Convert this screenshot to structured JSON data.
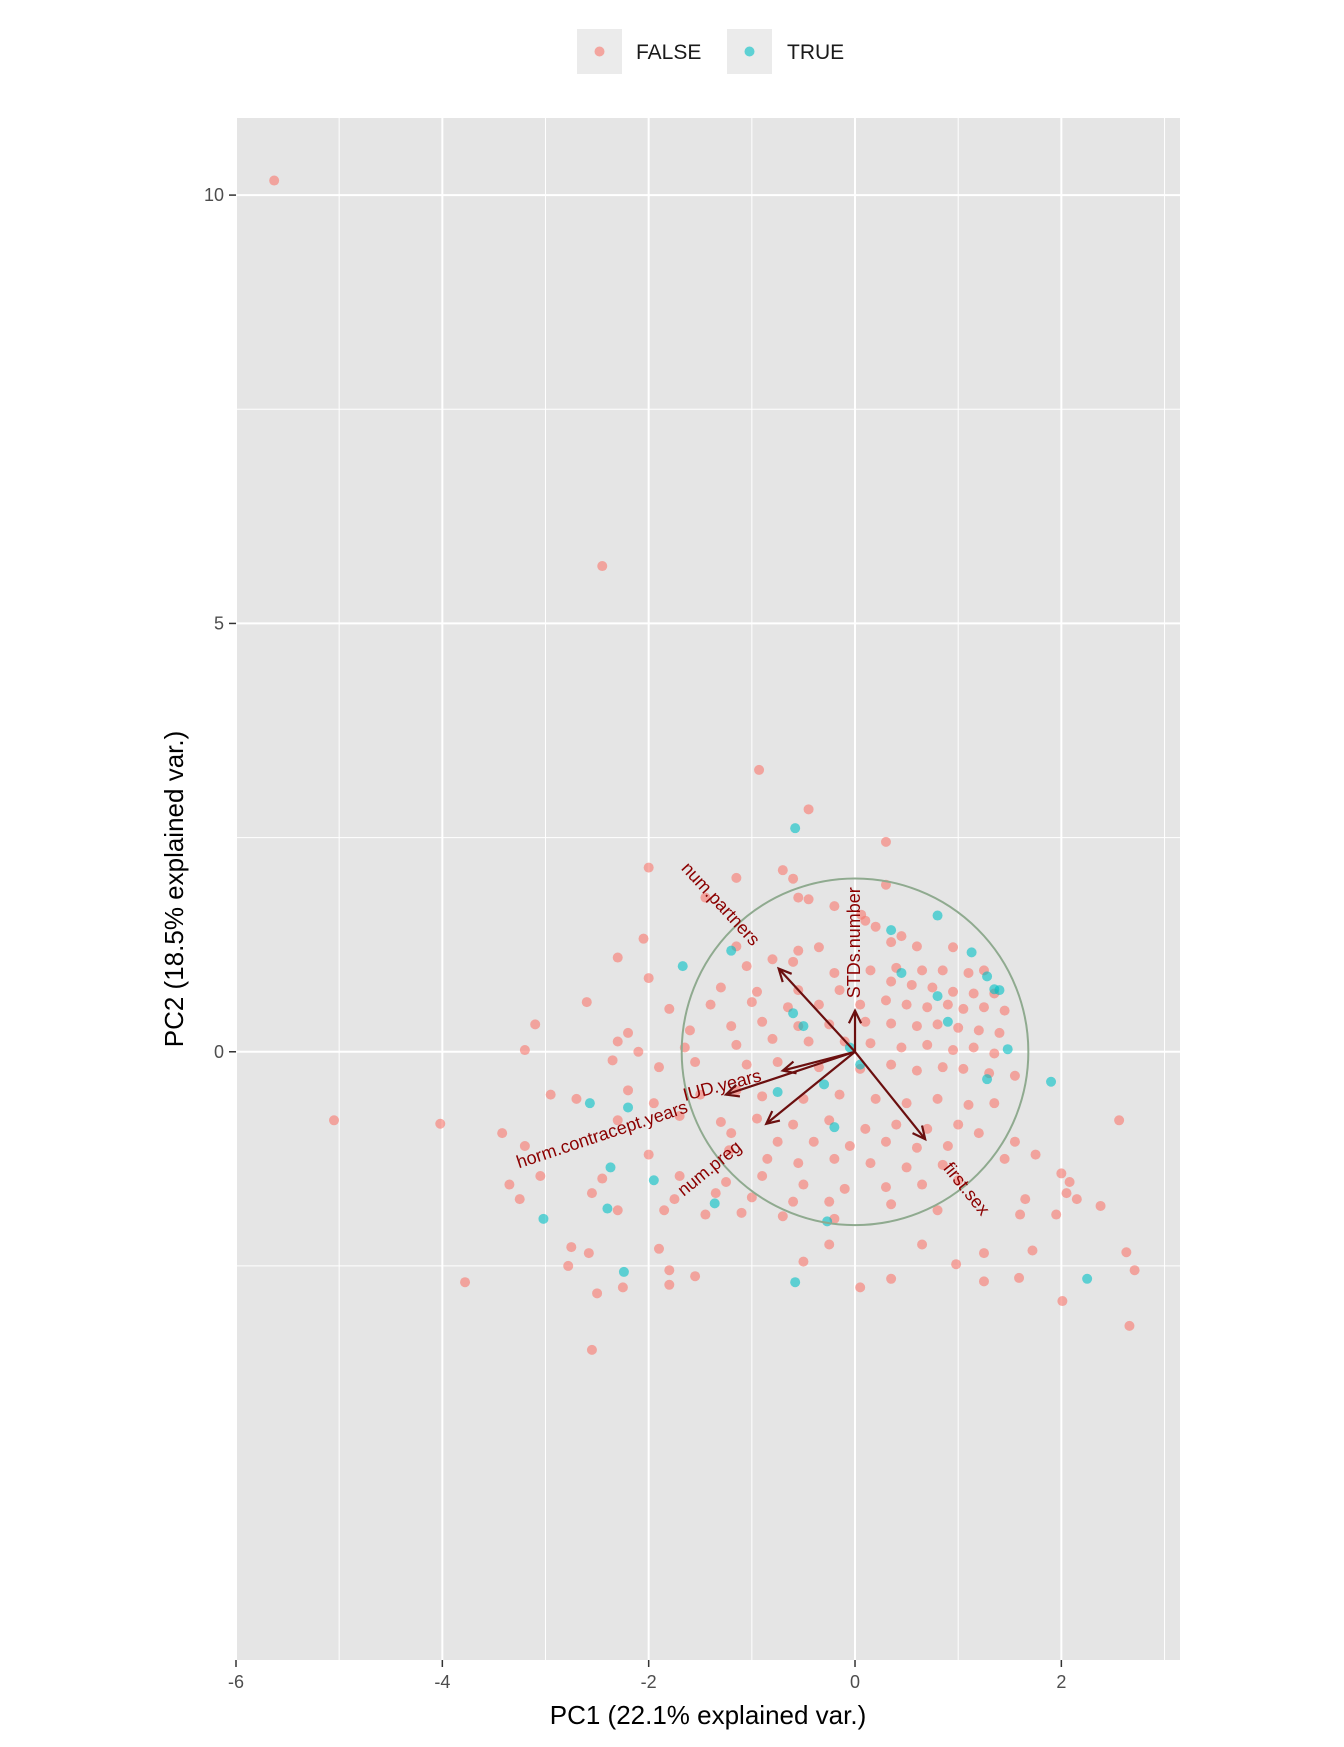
{
  "chart_data": {
    "type": "scatter",
    "title": "",
    "xlabel": "PC1 (22.1% explained var.)",
    "ylabel": "PC2 (18.5% explained var.)",
    "xlim": [
      -6.0,
      3.15
    ],
    "ylim": [
      -7.1,
      10.9
    ],
    "x_ticks": [
      -6,
      -4,
      -2,
      0,
      2
    ],
    "y_ticks": [
      0,
      5,
      10
    ],
    "x_tick_labels": [
      "-6",
      "-4",
      "-2",
      "0",
      "2"
    ],
    "y_tick_labels": [
      "0",
      "5",
      "10"
    ],
    "grid": true,
    "legend_position": "top",
    "panel_background": "#e5e5e5",
    "grid_color": "#ffffff",
    "circle": {
      "cx": 0,
      "cy": 0,
      "r": 1.68,
      "color": "#8faa8f"
    },
    "legend": [
      {
        "label": "FALSE",
        "color": "#f8766d"
      },
      {
        "label": "TRUE",
        "color": "#00bfc4"
      }
    ],
    "series": [
      {
        "name": "FALSE",
        "color": "#f8766d",
        "points": [
          [
            -5.63,
            10.17
          ],
          [
            -2.45,
            5.67
          ],
          [
            -0.93,
            3.29
          ],
          [
            -0.45,
            2.83
          ],
          [
            0.3,
            2.45
          ],
          [
            -2.0,
            2.15
          ],
          [
            -1.15,
            2.03
          ],
          [
            -0.7,
            2.12
          ],
          [
            -0.6,
            2.02
          ],
          [
            0.3,
            1.95
          ],
          [
            -1.45,
            1.8
          ],
          [
            -0.55,
            1.8
          ],
          [
            -0.45,
            1.78
          ],
          [
            -0.2,
            1.7
          ],
          [
            0.06,
            1.6
          ],
          [
            0.1,
            1.53
          ],
          [
            0.2,
            1.46
          ],
          [
            0.45,
            1.35
          ],
          [
            -2.05,
            1.32
          ],
          [
            -1.15,
            1.23
          ],
          [
            -0.55,
            1.18
          ],
          [
            -0.35,
            1.22
          ],
          [
            -0.8,
            1.08
          ],
          [
            -0.6,
            1.05
          ],
          [
            0.35,
            1.28
          ],
          [
            0.6,
            1.23
          ],
          [
            0.95,
            1.22
          ],
          [
            -2.3,
            1.1
          ],
          [
            -1.05,
            1.0
          ],
          [
            -0.2,
            0.92
          ],
          [
            0.15,
            0.95
          ],
          [
            0.4,
            0.98
          ],
          [
            0.65,
            0.95
          ],
          [
            0.85,
            0.95
          ],
          [
            1.1,
            0.92
          ],
          [
            1.25,
            0.95
          ],
          [
            -2.0,
            0.86
          ],
          [
            -1.3,
            0.75
          ],
          [
            -0.95,
            0.7
          ],
          [
            -0.55,
            0.72
          ],
          [
            -0.15,
            0.72
          ],
          [
            0.35,
            0.82
          ],
          [
            0.55,
            0.78
          ],
          [
            0.75,
            0.75
          ],
          [
            0.95,
            0.7
          ],
          [
            1.15,
            0.68
          ],
          [
            1.35,
            0.68
          ],
          [
            -2.6,
            0.58
          ],
          [
            -1.8,
            0.5
          ],
          [
            -1.4,
            0.55
          ],
          [
            -1.0,
            0.58
          ],
          [
            -0.65,
            0.52
          ],
          [
            -0.35,
            0.55
          ],
          [
            0.05,
            0.55
          ],
          [
            0.3,
            0.6
          ],
          [
            0.5,
            0.55
          ],
          [
            0.7,
            0.52
          ],
          [
            0.9,
            0.55
          ],
          [
            1.05,
            0.5
          ],
          [
            1.25,
            0.52
          ],
          [
            1.45,
            0.48
          ],
          [
            -3.1,
            0.32
          ],
          [
            -2.2,
            0.22
          ],
          [
            -1.6,
            0.25
          ],
          [
            -1.2,
            0.3
          ],
          [
            -0.9,
            0.35
          ],
          [
            -0.55,
            0.3
          ],
          [
            -0.25,
            0.32
          ],
          [
            0.1,
            0.35
          ],
          [
            0.35,
            0.33
          ],
          [
            0.6,
            0.3
          ],
          [
            0.8,
            0.32
          ],
          [
            1.0,
            0.28
          ],
          [
            1.2,
            0.25
          ],
          [
            1.4,
            0.22
          ],
          [
            -3.2,
            0.02
          ],
          [
            -2.3,
            0.12
          ],
          [
            -2.1,
            0.0
          ],
          [
            -1.65,
            0.05
          ],
          [
            -1.15,
            0.08
          ],
          [
            -0.8,
            0.15
          ],
          [
            -0.45,
            0.12
          ],
          [
            -0.1,
            0.12
          ],
          [
            0.15,
            0.1
          ],
          [
            0.45,
            0.05
          ],
          [
            0.7,
            0.08
          ],
          [
            0.95,
            0.02
          ],
          [
            1.15,
            0.05
          ],
          [
            1.35,
            -0.02
          ],
          [
            -2.35,
            -0.1
          ],
          [
            -1.9,
            -0.18
          ],
          [
            -1.55,
            -0.12
          ],
          [
            -1.05,
            -0.15
          ],
          [
            -0.75,
            -0.12
          ],
          [
            -0.35,
            -0.18
          ],
          [
            0.05,
            -0.2
          ],
          [
            0.35,
            -0.15
          ],
          [
            0.6,
            -0.22
          ],
          [
            0.85,
            -0.18
          ],
          [
            1.05,
            -0.2
          ],
          [
            1.3,
            -0.25
          ],
          [
            1.55,
            -0.28
          ],
          [
            -2.95,
            -0.5
          ],
          [
            -2.7,
            -0.55
          ],
          [
            -2.2,
            -0.45
          ],
          [
            -1.95,
            -0.6
          ],
          [
            -1.5,
            -0.5
          ],
          [
            -1.15,
            -0.45
          ],
          [
            -0.9,
            -0.52
          ],
          [
            -0.5,
            -0.55
          ],
          [
            -0.15,
            -0.5
          ],
          [
            0.2,
            -0.55
          ],
          [
            0.5,
            -0.6
          ],
          [
            0.8,
            -0.55
          ],
          [
            1.1,
            -0.62
          ],
          [
            1.35,
            -0.6
          ],
          [
            -2.3,
            -0.8
          ],
          [
            -1.7,
            -0.75
          ],
          [
            -1.3,
            -0.82
          ],
          [
            -0.95,
            -0.78
          ],
          [
            -0.6,
            -0.85
          ],
          [
            -0.25,
            -0.8
          ],
          [
            0.1,
            -0.9
          ],
          [
            0.4,
            -0.85
          ],
          [
            0.7,
            -0.9
          ],
          [
            1.0,
            -0.85
          ],
          [
            1.2,
            -0.95
          ],
          [
            -1.2,
            -0.95
          ],
          [
            -0.75,
            -1.05
          ],
          [
            -0.4,
            -1.05
          ],
          [
            -0.05,
            -1.1
          ],
          [
            0.3,
            -1.05
          ],
          [
            0.6,
            -1.12
          ],
          [
            0.9,
            -1.1
          ],
          [
            1.55,
            -1.05
          ],
          [
            1.75,
            -1.2
          ],
          [
            -5.05,
            -0.8
          ],
          [
            -4.02,
            -0.84
          ],
          [
            -3.42,
            -0.95
          ],
          [
            -3.2,
            -1.1
          ],
          [
            -2.0,
            -1.2
          ],
          [
            -1.22,
            -1.15
          ],
          [
            -0.85,
            -1.25
          ],
          [
            -0.55,
            -1.3
          ],
          [
            -0.2,
            -1.25
          ],
          [
            0.15,
            -1.3
          ],
          [
            0.5,
            -1.35
          ],
          [
            0.85,
            -1.32
          ],
          [
            1.45,
            -1.25
          ],
          [
            -3.05,
            -1.45
          ],
          [
            -2.45,
            -1.48
          ],
          [
            -1.7,
            -1.45
          ],
          [
            -1.25,
            -1.52
          ],
          [
            -0.9,
            -1.45
          ],
          [
            -0.5,
            -1.55
          ],
          [
            -0.1,
            -1.6
          ],
          [
            0.3,
            -1.58
          ],
          [
            0.65,
            -1.55
          ],
          [
            1.0,
            -1.5
          ],
          [
            2.0,
            -1.42
          ],
          [
            2.08,
            -1.52
          ],
          [
            2.05,
            -1.65
          ],
          [
            -3.35,
            -1.55
          ],
          [
            -2.55,
            -1.65
          ],
          [
            -1.75,
            -1.72
          ],
          [
            -1.35,
            -1.65
          ],
          [
            -1.0,
            -1.7
          ],
          [
            -0.6,
            -1.75
          ],
          [
            -0.25,
            -1.75
          ],
          [
            0.35,
            -1.78
          ],
          [
            1.65,
            -1.72
          ],
          [
            2.15,
            -1.72
          ],
          [
            -3.25,
            -1.72
          ],
          [
            -2.3,
            -1.85
          ],
          [
            -1.85,
            -1.85
          ],
          [
            -1.45,
            -1.9
          ],
          [
            -1.1,
            -1.88
          ],
          [
            -0.7,
            -1.92
          ],
          [
            -0.2,
            -1.95
          ],
          [
            0.8,
            -1.85
          ],
          [
            1.6,
            -1.9
          ],
          [
            1.95,
            -1.9
          ],
          [
            2.38,
            -1.8
          ],
          [
            -2.75,
            -2.28
          ],
          [
            -2.58,
            -2.35
          ],
          [
            -1.9,
            -2.3
          ],
          [
            -0.25,
            -2.25
          ],
          [
            0.65,
            -2.25
          ],
          [
            0.98,
            -2.48
          ],
          [
            1.25,
            -2.35
          ],
          [
            1.72,
            -2.32
          ],
          [
            -2.78,
            -2.5
          ],
          [
            -1.8,
            -2.55
          ],
          [
            -1.55,
            -2.62
          ],
          [
            -0.5,
            -2.45
          ],
          [
            0.35,
            -2.65
          ],
          [
            1.25,
            -2.68
          ],
          [
            1.59,
            -2.64
          ],
          [
            2.63,
            -2.34
          ],
          [
            -3.78,
            -2.69
          ],
          [
            -2.5,
            -2.82
          ],
          [
            -1.8,
            -2.72
          ],
          [
            0.05,
            -2.75
          ],
          [
            2.71,
            -2.55
          ],
          [
            2.01,
            -2.91
          ],
          [
            2.66,
            -3.2
          ],
          [
            -2.55,
            -3.48
          ],
          [
            -2.25,
            -2.75
          ],
          [
            2.56,
            -0.8
          ]
        ]
      },
      {
        "name": "TRUE",
        "color": "#00bfc4",
        "points": [
          [
            -0.58,
            2.61
          ],
          [
            0.8,
            1.59
          ],
          [
            1.13,
            1.16
          ],
          [
            1.28,
            0.88
          ],
          [
            1.35,
            0.73
          ],
          [
            -1.2,
            1.18
          ],
          [
            -1.67,
            1.0
          ],
          [
            -0.6,
            0.45
          ],
          [
            0.35,
            1.42
          ],
          [
            0.45,
            0.92
          ],
          [
            0.8,
            0.65
          ],
          [
            1.4,
            0.72
          ],
          [
            0.9,
            0.35
          ],
          [
            1.48,
            0.03
          ],
          [
            -0.05,
            0.05
          ],
          [
            -0.5,
            0.3
          ],
          [
            1.28,
            -0.32
          ],
          [
            1.9,
            -0.35
          ],
          [
            -2.57,
            -0.6
          ],
          [
            -2.2,
            -0.65
          ],
          [
            -0.3,
            -0.38
          ],
          [
            0.05,
            -0.15
          ],
          [
            -0.75,
            -0.47
          ],
          [
            -0.2,
            -0.88
          ],
          [
            -2.37,
            -1.35
          ],
          [
            -1.95,
            -1.5
          ],
          [
            -3.02,
            -1.95
          ],
          [
            -2.4,
            -1.83
          ],
          [
            -1.36,
            -1.77
          ],
          [
            -0.27,
            -1.98
          ],
          [
            -2.24,
            -2.57
          ],
          [
            -0.58,
            -2.69
          ],
          [
            2.25,
            -2.65
          ]
        ]
      }
    ],
    "loadings": [
      {
        "label": "num.partners",
        "x": -0.74,
        "y": 0.97
      },
      {
        "label": "STDs.number",
        "x": 0.0,
        "y": 0.48
      },
      {
        "label": "IUD.years",
        "x": -0.7,
        "y": -0.22
      },
      {
        "label": "num.preg",
        "x": -0.86,
        "y": -0.84
      },
      {
        "label": "horm.contracept.years",
        "x": -1.25,
        "y": -0.5
      },
      {
        "label": "first.sex",
        "x": 0.68,
        "y": -1.02
      }
    ]
  }
}
